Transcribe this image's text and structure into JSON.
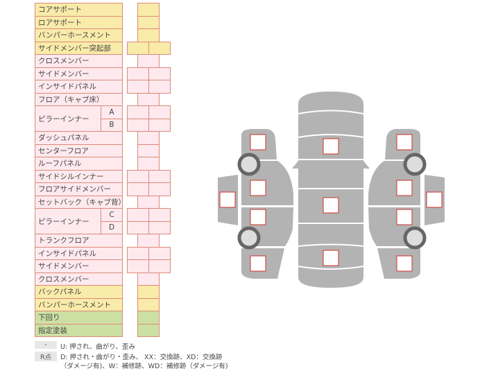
{
  "rows": [
    {
      "label": "コアサポート",
      "color": "yellow",
      "cells": 1
    },
    {
      "label": "ロアサポート",
      "color": "yellow",
      "cells": 1
    },
    {
      "label": "バンパーホースメント",
      "color": "yellow",
      "cells": 1
    },
    {
      "label": "サイドメンバー突起部",
      "color": "yellow",
      "cells": 2
    },
    {
      "label": "クロスメンバー",
      "color": "pink",
      "cells": 1
    },
    {
      "label": "サイドメンバー",
      "color": "pink",
      "cells": 2
    },
    {
      "label": "インサイドパネル",
      "color": "pink",
      "cells": 2
    },
    {
      "label": "フロア（キャブ床）",
      "color": "pink",
      "cells": 1
    },
    {
      "label": "ピラーインナー",
      "color": "pink",
      "cells": 2,
      "sub": [
        "A",
        "B"
      ]
    },
    {
      "label": "ダッシュパネル",
      "color": "pink",
      "cells": 1
    },
    {
      "label": "センターフロア",
      "color": "pink",
      "cells": 1
    },
    {
      "label": "ルーフパネル",
      "color": "pink",
      "cells": 1
    },
    {
      "label": "サイドシルインナー",
      "color": "pink",
      "cells": 2
    },
    {
      "label": "フロアサイドメンバー",
      "color": "pink",
      "cells": 2
    },
    {
      "label": "セットバック（キャブ背）",
      "color": "pink",
      "cells": 1
    },
    {
      "label": "ピラーインナー",
      "color": "pink",
      "cells": 2,
      "sub": [
        "C",
        "D"
      ]
    },
    {
      "label": "トランクフロア",
      "color": "pink",
      "cells": 1
    },
    {
      "label": "インサイドパネル",
      "color": "pink",
      "cells": 2
    },
    {
      "label": "サイドメンバー",
      "color": "pink",
      "cells": 2
    },
    {
      "label": "クロスメンバー",
      "color": "pink",
      "cells": 1
    },
    {
      "label": "バックパネル",
      "color": "yellow",
      "cells": 1
    },
    {
      "label": "バンパーホースメント",
      "color": "yellow",
      "cells": 1
    },
    {
      "label": "下回り",
      "color": "green",
      "cells": 1
    },
    {
      "label": "指定塗装",
      "color": "green",
      "cells": 1
    }
  ],
  "legend": [
    {
      "key": "-",
      "text": "U: 押され、曲がり、歪み"
    },
    {
      "key": "R点",
      "text": "D: 押され・曲がり・歪み、 XX：交換跡、XD：交換跡",
      "text2": "（ダメージ有)、W：補修跡、WD：補修跡（ダメージ有)"
    }
  ],
  "colors": {
    "yellow": "#f9eba9",
    "pink": "#fde9ee",
    "green": "#cde0a4",
    "border": "#dc8a78",
    "car": "#b3b3b3",
    "marker": "#d0302a"
  }
}
